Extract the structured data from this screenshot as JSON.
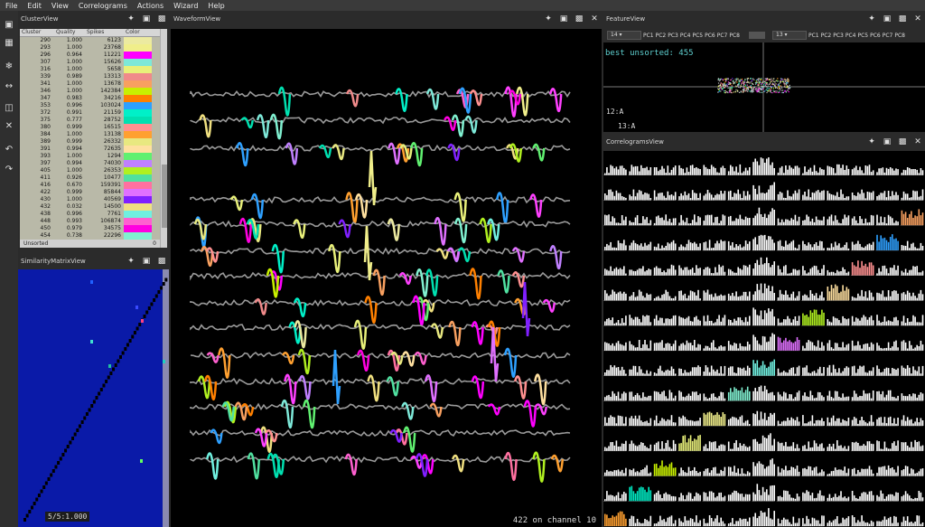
{
  "menu": [
    "File",
    "Edit",
    "View",
    "Correlograms",
    "Actions",
    "Wizard",
    "Help"
  ],
  "cluster_view": {
    "title": "ClusterView",
    "columns": [
      "Cluster",
      "Quality",
      "Spikes",
      "Color"
    ],
    "rows": [
      {
        "id": "290",
        "quality": "1.000",
        "spikes": "6123",
        "color": "#eceaa0"
      },
      {
        "id": "293",
        "quality": "1.000",
        "spikes": "23768",
        "color": "#f0ee8a"
      },
      {
        "id": "296",
        "quality": "0.964",
        "spikes": "11221",
        "color": "#ff00ff"
      },
      {
        "id": "307",
        "quality": "1.000",
        "spikes": "15626",
        "color": "#7de8d8"
      },
      {
        "id": "316",
        "quality": "1.000",
        "spikes": "5658",
        "color": "#e8f07a"
      },
      {
        "id": "339",
        "quality": "0.989",
        "spikes": "13313",
        "color": "#f08a8a"
      },
      {
        "id": "341",
        "quality": "1.000",
        "spikes": "13678",
        "color": "#f8a060"
      },
      {
        "id": "346",
        "quality": "1.000",
        "spikes": "142384",
        "color": "#c8f000"
      },
      {
        "id": "347",
        "quality": "0.983",
        "spikes": "34216",
        "color": "#ff8000"
      },
      {
        "id": "353",
        "quality": "0.996",
        "spikes": "103024",
        "color": "#2ea0ff"
      },
      {
        "id": "372",
        "quality": "0.991",
        "spikes": "21159",
        "color": "#00f0c8"
      },
      {
        "id": "375",
        "quality": "0.777",
        "spikes": "28752",
        "color": "#00e0b0"
      },
      {
        "id": "380",
        "quality": "0.999",
        "spikes": "16515",
        "color": "#ff9090"
      },
      {
        "id": "384",
        "quality": "1.000",
        "spikes": "13138",
        "color": "#ffa030"
      },
      {
        "id": "389",
        "quality": "0.999",
        "spikes": "26332",
        "color": "#e8e880"
      },
      {
        "id": "391",
        "quality": "0.994",
        "spikes": "72635",
        "color": "#ffe0a0"
      },
      {
        "id": "393",
        "quality": "1.000",
        "spikes": "1294",
        "color": "#60f070"
      },
      {
        "id": "397",
        "quality": "0.994",
        "spikes": "74030",
        "color": "#c080ff"
      },
      {
        "id": "405",
        "quality": "1.000",
        "spikes": "26353",
        "color": "#b0f020"
      },
      {
        "id": "411",
        "quality": "0.926",
        "spikes": "10477",
        "color": "#50e0a0"
      },
      {
        "id": "416",
        "quality": "0.670",
        "spikes": "159391",
        "color": "#ff70a0"
      },
      {
        "id": "422",
        "quality": "0.999",
        "spikes": "85844",
        "color": "#e070ff"
      },
      {
        "id": "430",
        "quality": "1.000",
        "spikes": "40569",
        "color": "#8020ff"
      },
      {
        "id": "432",
        "quality": "0.032",
        "spikes": "14500",
        "color": "#f0e080"
      },
      {
        "id": "438",
        "quality": "0.996",
        "spikes": "7761",
        "color": "#70f0e0"
      },
      {
        "id": "448",
        "quality": "0.993",
        "spikes": "106874",
        "color": "#ff60d0"
      },
      {
        "id": "450",
        "quality": "0.979",
        "spikes": "34575",
        "color": "#ff00e0"
      },
      {
        "id": "454",
        "quality": "0.738",
        "spikes": "22296",
        "color": "#80f0d0"
      },
      {
        "id": "455",
        "quality": "1.000",
        "spikes": "20861",
        "color": "#ff40ff"
      }
    ],
    "unsorted_label": "Unsorted",
    "unsorted_count": "0"
  },
  "similarity_view": {
    "title": "SimilarityMatrixView",
    "status": "5/5:1.000"
  },
  "waveform_view": {
    "title": "WaveformView",
    "status": "422 on channel 10"
  },
  "feature_view": {
    "title": "FeatureView",
    "x_channel": "14",
    "y_channel": "13",
    "pcs": [
      "PC1",
      "PC2",
      "PC3",
      "PC4",
      "PC5",
      "PC6",
      "PC7",
      "PC8"
    ],
    "best_label": "best unsorted: 455",
    "label_a": "12:A",
    "label_b": "13:A"
  },
  "correlograms_view": {
    "title": "CorrelogramsView"
  },
  "colors": {
    "accent": "#5fd0d0",
    "matrix_bg": "#0a1aa8",
    "matrix_diag": "#000000"
  }
}
